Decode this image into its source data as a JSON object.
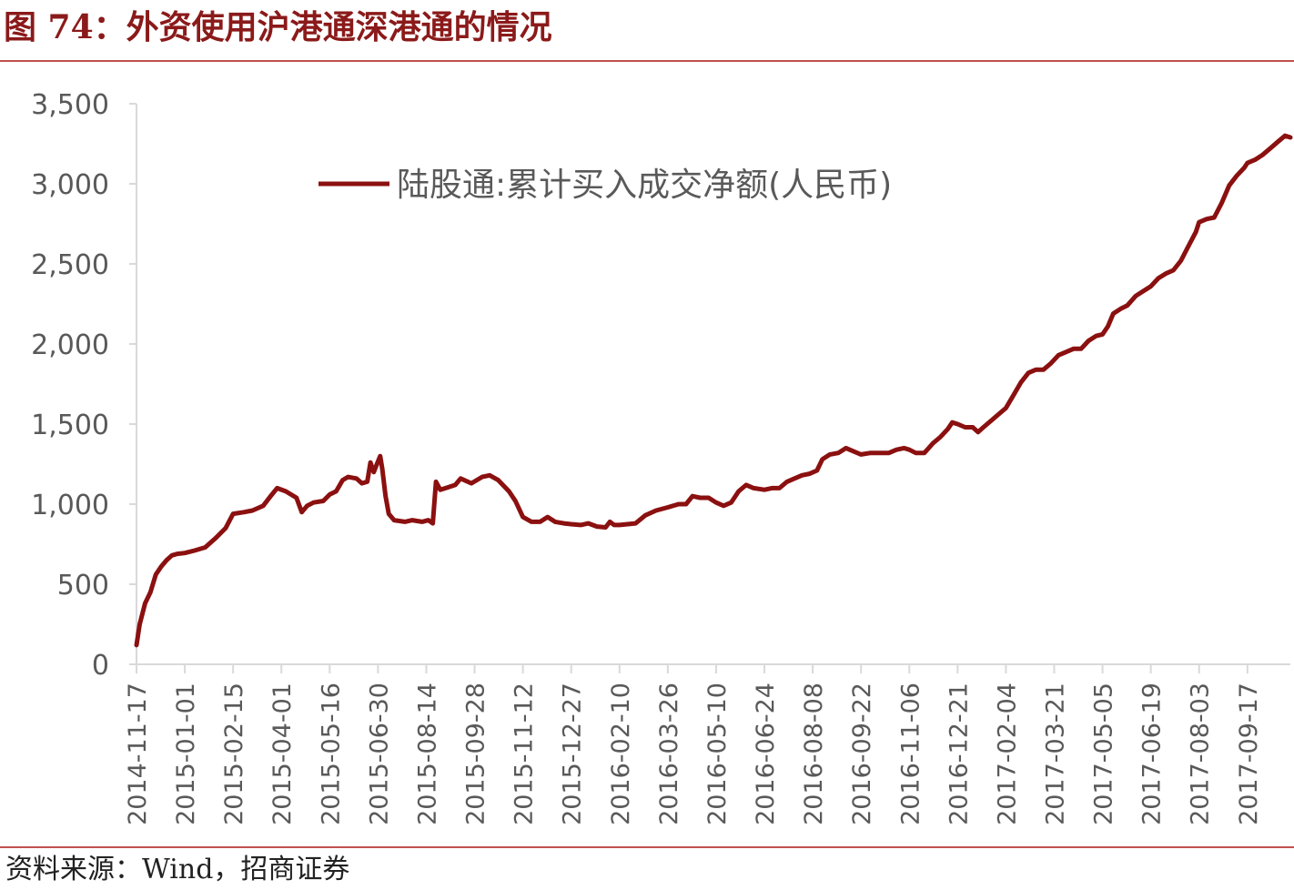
{
  "figure": {
    "title": "图 74：外资使用沪港通深港通的情况",
    "source": "资料来源：Wind，招商证券"
  },
  "colors": {
    "line": "#8b1010",
    "rule": "#c0504d",
    "axis": "#d9d9d9",
    "text": "#595959"
  },
  "chart_data": {
    "type": "line",
    "title": "",
    "xlabel": "",
    "ylabel": "",
    "ylim": [
      0,
      3500
    ],
    "yticks": [
      0,
      500,
      1000,
      1500,
      2000,
      2500,
      3000,
      3500
    ],
    "ytick_labels": [
      "0",
      "500",
      "1,000",
      "1,500",
      "2,000",
      "2,500",
      "3,000",
      "3,500"
    ],
    "xlim": [
      "2014-11-17",
      "2017-10-27"
    ],
    "xtick_labels": [
      "2014-11-17",
      "2015-01-01",
      "2015-02-15",
      "2015-04-01",
      "2015-05-16",
      "2015-06-30",
      "2015-08-14",
      "2015-09-28",
      "2015-11-12",
      "2015-12-27",
      "2016-02-10",
      "2016-03-26",
      "2016-05-10",
      "2016-06-24",
      "2016-08-08",
      "2016-09-22",
      "2016-11-06",
      "2016-12-21",
      "2017-02-04",
      "2017-03-21",
      "2017-05-05",
      "2017-06-19",
      "2017-08-03",
      "2017-09-17"
    ],
    "grid": false,
    "legend_position": "top-center",
    "series": [
      {
        "name": "陆股通:累计买入成交净额(人民币)",
        "points": [
          [
            "2014-11-17",
            120
          ],
          [
            "2014-11-20",
            250
          ],
          [
            "2014-11-25",
            380
          ],
          [
            "2014-11-30",
            450
          ],
          [
            "2014-12-05",
            560
          ],
          [
            "2014-12-10",
            610
          ],
          [
            "2014-12-15",
            650
          ],
          [
            "2014-12-20",
            680
          ],
          [
            "2014-12-25",
            690
          ],
          [
            "2015-01-01",
            695
          ],
          [
            "2015-01-10",
            710
          ],
          [
            "2015-01-20",
            730
          ],
          [
            "2015-01-30",
            790
          ],
          [
            "2015-02-08",
            850
          ],
          [
            "2015-02-15",
            940
          ],
          [
            "2015-02-25",
            950
          ],
          [
            "2015-03-05",
            960
          ],
          [
            "2015-03-15",
            990
          ],
          [
            "2015-03-22",
            1050
          ],
          [
            "2015-03-28",
            1100
          ],
          [
            "2015-04-05",
            1080
          ],
          [
            "2015-04-15",
            1040
          ],
          [
            "2015-04-20",
            950
          ],
          [
            "2015-04-25",
            990
          ],
          [
            "2015-05-01",
            1010
          ],
          [
            "2015-05-10",
            1020
          ],
          [
            "2015-05-16",
            1060
          ],
          [
            "2015-05-22",
            1080
          ],
          [
            "2015-05-28",
            1150
          ],
          [
            "2015-06-02",
            1170
          ],
          [
            "2015-06-10",
            1160
          ],
          [
            "2015-06-15",
            1130
          ],
          [
            "2015-06-20",
            1140
          ],
          [
            "2015-06-23",
            1260
          ],
          [
            "2015-06-26",
            1200
          ],
          [
            "2015-06-29",
            1250
          ],
          [
            "2015-07-02",
            1300
          ],
          [
            "2015-07-04",
            1220
          ],
          [
            "2015-07-07",
            1050
          ],
          [
            "2015-07-10",
            940
          ],
          [
            "2015-07-15",
            900
          ],
          [
            "2015-07-25",
            890
          ],
          [
            "2015-08-01",
            900
          ],
          [
            "2015-08-10",
            890
          ],
          [
            "2015-08-16",
            900
          ],
          [
            "2015-08-20",
            880
          ],
          [
            "2015-08-23",
            1140
          ],
          [
            "2015-08-27",
            1090
          ],
          [
            "2015-09-01",
            1100
          ],
          [
            "2015-09-10",
            1120
          ],
          [
            "2015-09-15",
            1160
          ],
          [
            "2015-09-25",
            1130
          ],
          [
            "2015-10-05",
            1170
          ],
          [
            "2015-10-12",
            1180
          ],
          [
            "2015-10-20",
            1150
          ],
          [
            "2015-10-30",
            1080
          ],
          [
            "2015-11-05",
            1020
          ],
          [
            "2015-11-12",
            920
          ],
          [
            "2015-11-20",
            890
          ],
          [
            "2015-11-28",
            890
          ],
          [
            "2015-12-05",
            920
          ],
          [
            "2015-12-12",
            890
          ],
          [
            "2015-12-20",
            880
          ],
          [
            "2015-12-27",
            875
          ],
          [
            "2016-01-05",
            870
          ],
          [
            "2016-01-12",
            880
          ],
          [
            "2016-01-20",
            860
          ],
          [
            "2016-01-28",
            855
          ],
          [
            "2016-02-01",
            890
          ],
          [
            "2016-02-05",
            870
          ],
          [
            "2016-02-10",
            870
          ],
          [
            "2016-02-25",
            880
          ],
          [
            "2016-03-05",
            930
          ],
          [
            "2016-03-15",
            960
          ],
          [
            "2016-03-26",
            980
          ],
          [
            "2016-04-05",
            1000
          ],
          [
            "2016-04-12",
            1000
          ],
          [
            "2016-04-18",
            1050
          ],
          [
            "2016-04-25",
            1040
          ],
          [
            "2016-05-03",
            1040
          ],
          [
            "2016-05-10",
            1010
          ],
          [
            "2016-05-17",
            990
          ],
          [
            "2016-05-24",
            1010
          ],
          [
            "2016-05-31",
            1080
          ],
          [
            "2016-06-07",
            1120
          ],
          [
            "2016-06-14",
            1100
          ],
          [
            "2016-06-24",
            1090
          ],
          [
            "2016-07-01",
            1100
          ],
          [
            "2016-07-08",
            1100
          ],
          [
            "2016-07-15",
            1140
          ],
          [
            "2016-07-22",
            1160
          ],
          [
            "2016-07-29",
            1180
          ],
          [
            "2016-08-05",
            1190
          ],
          [
            "2016-08-12",
            1210
          ],
          [
            "2016-08-17",
            1280
          ],
          [
            "2016-08-24",
            1310
          ],
          [
            "2016-09-01",
            1320
          ],
          [
            "2016-09-08",
            1350
          ],
          [
            "2016-09-15",
            1330
          ],
          [
            "2016-09-22",
            1310
          ],
          [
            "2016-10-01",
            1320
          ],
          [
            "2016-10-10",
            1320
          ],
          [
            "2016-10-18",
            1320
          ],
          [
            "2016-10-25",
            1340
          ],
          [
            "2016-11-01",
            1350
          ],
          [
            "2016-11-06",
            1340
          ],
          [
            "2016-11-12",
            1320
          ],
          [
            "2016-11-20",
            1320
          ],
          [
            "2016-11-28",
            1380
          ],
          [
            "2016-12-05",
            1420
          ],
          [
            "2016-12-12",
            1470
          ],
          [
            "2016-12-16",
            1510
          ],
          [
            "2016-12-21",
            1500
          ],
          [
            "2016-12-28",
            1480
          ],
          [
            "2017-01-04",
            1480
          ],
          [
            "2017-01-09",
            1450
          ],
          [
            "2017-01-14",
            1480
          ],
          [
            "2017-01-21",
            1520
          ],
          [
            "2017-01-28",
            1560
          ],
          [
            "2017-02-04",
            1600
          ],
          [
            "2017-02-11",
            1680
          ],
          [
            "2017-02-18",
            1760
          ],
          [
            "2017-02-25",
            1820
          ],
          [
            "2017-03-04",
            1840
          ],
          [
            "2017-03-11",
            1840
          ],
          [
            "2017-03-18",
            1880
          ],
          [
            "2017-03-25",
            1930
          ],
          [
            "2017-04-01",
            1950
          ],
          [
            "2017-04-08",
            1970
          ],
          [
            "2017-04-15",
            1970
          ],
          [
            "2017-04-22",
            2020
          ],
          [
            "2017-04-29",
            2050
          ],
          [
            "2017-05-05",
            2060
          ],
          [
            "2017-05-10",
            2110
          ],
          [
            "2017-05-15",
            2190
          ],
          [
            "2017-05-22",
            2220
          ],
          [
            "2017-05-28",
            2240
          ],
          [
            "2017-06-05",
            2300
          ],
          [
            "2017-06-12",
            2330
          ],
          [
            "2017-06-19",
            2360
          ],
          [
            "2017-06-26",
            2410
          ],
          [
            "2017-07-03",
            2440
          ],
          [
            "2017-07-10",
            2460
          ],
          [
            "2017-07-17",
            2520
          ],
          [
            "2017-07-24",
            2610
          ],
          [
            "2017-07-31",
            2700
          ],
          [
            "2017-08-03",
            2760
          ],
          [
            "2017-08-10",
            2780
          ],
          [
            "2017-08-17",
            2790
          ],
          [
            "2017-08-24",
            2880
          ],
          [
            "2017-08-31",
            2990
          ],
          [
            "2017-09-07",
            3050
          ],
          [
            "2017-09-14",
            3100
          ],
          [
            "2017-09-17",
            3130
          ],
          [
            "2017-09-24",
            3150
          ],
          [
            "2017-10-01",
            3180
          ],
          [
            "2017-10-08",
            3220
          ],
          [
            "2017-10-15",
            3260
          ],
          [
            "2017-10-22",
            3300
          ],
          [
            "2017-10-27",
            3290
          ]
        ]
      }
    ]
  }
}
